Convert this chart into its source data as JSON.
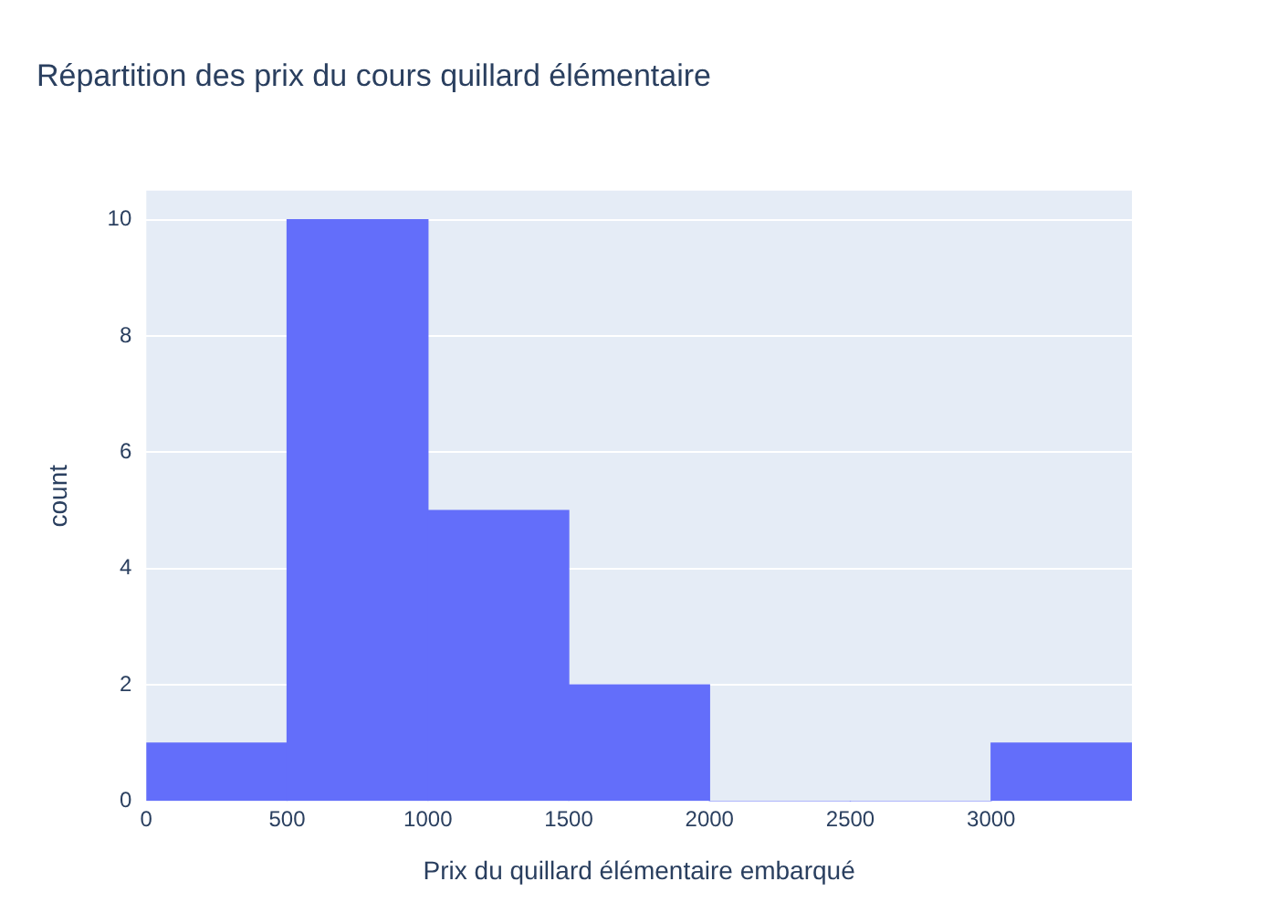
{
  "chart_data": {
    "type": "histogram",
    "title": "Répartition des prix du cours quillard élémentaire",
    "xlabel": "Prix du quillard élémentaire embarqué",
    "ylabel": "count",
    "bins": [
      0,
      500,
      1000,
      1500,
      2000,
      2500,
      3000,
      3500
    ],
    "values": [
      1,
      10,
      5,
      2,
      0,
      0,
      1
    ],
    "color": "#636efa",
    "xlim": [
      0,
      3500
    ],
    "xticks": [
      0,
      500,
      1000,
      1500,
      2000,
      2500,
      3000
    ],
    "ylim": [
      0,
      10.5
    ],
    "yticks": [
      0,
      2,
      4,
      6,
      8,
      10
    ],
    "grid": "y",
    "legend": false
  }
}
